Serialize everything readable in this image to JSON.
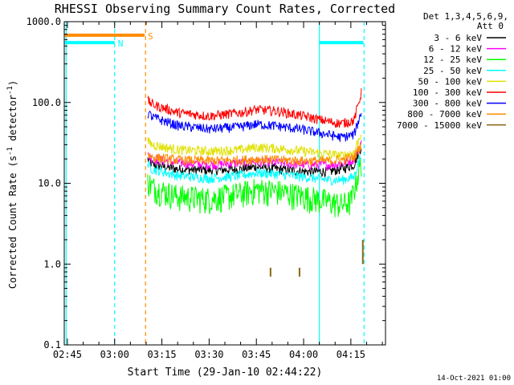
{
  "chart_data": {
    "type": "line",
    "title": "RHESSI Observing Summary Count Rates, Corrected",
    "xlabel": "Start Time (29-Jan-10 02:44:22)",
    "ylabel_parts": [
      "Corrected Count Rate (s",
      "-1",
      " detector",
      "-1",
      ")"
    ],
    "yscale": "log",
    "ylim": [
      0.1,
      1000
    ],
    "xlim_minutes": [
      164,
      266
    ],
    "x_ticks": [
      {
        "t": 165,
        "label": "02:45"
      },
      {
        "t": 180,
        "label": "03:00"
      },
      {
        "t": 195,
        "label": "03:15"
      },
      {
        "t": 210,
        "label": "03:30"
      },
      {
        "t": 225,
        "label": "03:45"
      },
      {
        "t": 240,
        "label": "04:00"
      },
      {
        "t": 255,
        "label": "04:15"
      }
    ],
    "y_ticks": [
      {
        "v": 0.1,
        "label": "0.1"
      },
      {
        "v": 1,
        "label": "1.0"
      },
      {
        "v": 10,
        "label": "10.0"
      },
      {
        "v": 100,
        "label": "100.0"
      },
      {
        "v": 1000,
        "label": "1000.0"
      }
    ],
    "legend_header": [
      "Det 1,3,4,5,6,9,",
      "Att 0"
    ],
    "series": [
      {
        "name": "3 - 6 keV",
        "color": "#000000",
        "x": [
          190.5,
          192,
          200,
          210,
          220,
          225,
          232,
          240,
          248,
          252,
          256,
          258.5
        ],
        "y": [
          20,
          17,
          15,
          14.5,
          15,
          16,
          15,
          14,
          14,
          15,
          17,
          30
        ]
      },
      {
        "name": "6 - 12 keV",
        "color": "#ff00ff",
        "x": [
          190.5,
          192,
          200,
          210,
          220,
          225,
          232,
          240,
          248,
          252,
          256,
          258.5
        ],
        "y": [
          22,
          20,
          18,
          17,
          18,
          18.5,
          18,
          17,
          17,
          17.5,
          20,
          32
        ]
      },
      {
        "name": "12 - 25 keV",
        "color": "#00ff00",
        "x": [
          190.5,
          192,
          200,
          210,
          220,
          225,
          232,
          240,
          248,
          252,
          255,
          258.5
        ],
        "y": [
          11,
          9,
          7,
          6.5,
          7.5,
          8.5,
          8,
          7,
          6,
          5.5,
          6,
          20
        ]
      },
      {
        "name": "25 - 50 keV",
        "color": "#00ffff",
        "x": [
          190.5,
          192,
          200,
          210,
          220,
          225,
          232,
          240,
          248,
          252,
          256,
          258.5
        ],
        "y": [
          17,
          15,
          12.5,
          11.5,
          12.5,
          13.5,
          13,
          12,
          11,
          11,
          12,
          25
        ]
      },
      {
        "name": "50 - 100 keV",
        "color": "#e0e000",
        "x": [
          190.5,
          192,
          200,
          210,
          220,
          225,
          232,
          240,
          248,
          252,
          256,
          258.5
        ],
        "y": [
          33,
          30,
          26,
          25,
          26,
          28,
          27,
          25,
          23,
          22,
          24,
          45
        ]
      },
      {
        "name": "100 - 300 keV",
        "color": "#ff0000",
        "x": [
          190.5,
          192,
          200,
          210,
          220,
          225,
          232,
          240,
          248,
          252,
          256,
          258.5
        ],
        "y": [
          105,
          95,
          75,
          68,
          75,
          82,
          78,
          68,
          58,
          55,
          60,
          140
        ]
      },
      {
        "name": "300 - 800 keV",
        "color": "#0000ff",
        "x": [
          190.5,
          192,
          200,
          210,
          220,
          225,
          232,
          240,
          248,
          252,
          256,
          258.5
        ],
        "y": [
          75,
          66,
          52,
          47,
          50,
          54,
          51,
          46,
          40,
          37,
          40,
          80
        ]
      },
      {
        "name": "800 - 7000 keV",
        "color": "#ff8c00",
        "x": [
          190.5,
          192,
          200,
          210,
          220,
          225,
          232,
          240,
          248,
          252,
          256,
          258.5
        ],
        "y": [
          23,
          21,
          19.5,
          19,
          19.5,
          20,
          19.5,
          19,
          19,
          19.5,
          21,
          32
        ]
      },
      {
        "name": "7000 - 15000 keV",
        "color": "#8b6914",
        "x": [],
        "y": []
      }
    ],
    "bars": [
      {
        "label": "N",
        "color": "#00ffff",
        "y": 550,
        "x0": 164.2,
        "x1": 180
      },
      {
        "label": "S",
        "color": "#ff8c00",
        "y": 680,
        "x0": 164.2,
        "x1": 189.5
      },
      {
        "label": "",
        "color": "#00ffff",
        "y": 550,
        "x0": 245,
        "x1": 259
      }
    ],
    "vlines": [
      {
        "t": 164.6,
        "color": "#00ffff",
        "dashed": false
      },
      {
        "t": 180,
        "color": "#00ffff",
        "dashed": true
      },
      {
        "t": 189.8,
        "color": "#ff8c00",
        "dashed": true
      },
      {
        "t": 245,
        "color": "#00ffff",
        "dashed": false
      },
      {
        "t": 259.2,
        "color": "#00ffff",
        "dashed": true
      }
    ],
    "spikes": [
      {
        "t": 229.5,
        "y0": 0.7,
        "y1": 0.9
      },
      {
        "t": 238.7,
        "y0": 0.7,
        "y1": 0.9
      },
      {
        "t": 258.8,
        "y0": 1.0,
        "y1": 2.0
      }
    ]
  },
  "footer_timestamp": "14-Oct-2021 01:00"
}
